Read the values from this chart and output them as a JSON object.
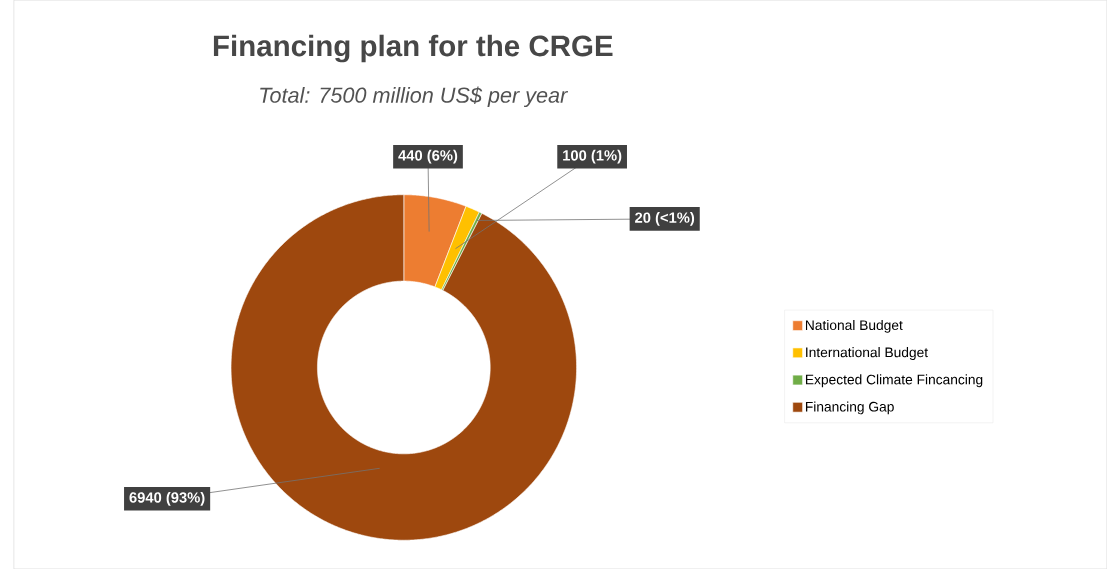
{
  "chart_data": {
    "type": "donut",
    "title": "Financing plan for the CRGE",
    "subtitle": "Total: 7500 million US$ per year",
    "categories": [
      "National Budget",
      "International Budget",
      "Expected Climate Fincancing",
      "Financing Gap"
    ],
    "values": [
      440,
      100,
      20,
      6940
    ],
    "colors": [
      "#ed7d31",
      "#ffc000",
      "#70ad47",
      "#9e480e"
    ],
    "value_labels": [
      "440 (6%)",
      "100 (1%)",
      "20 (<1%)",
      "6940 (93%)"
    ],
    "legend": "right"
  }
}
